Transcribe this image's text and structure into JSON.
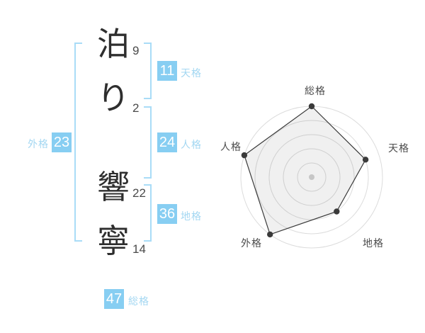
{
  "page": {
    "background": "#ffffff"
  },
  "name": {
    "characters": [
      {
        "char": "泊",
        "strokes": "9"
      },
      {
        "char": "り",
        "strokes": "2"
      },
      {
        "char": "響",
        "strokes": "22"
      },
      {
        "char": "寧",
        "strokes": "14"
      }
    ]
  },
  "scores": {
    "tenkaku": {
      "value": "11",
      "label": "天格"
    },
    "jinkaku": {
      "value": "24",
      "label": "人格"
    },
    "chikaku": {
      "value": "36",
      "label": "地格"
    },
    "gaikaku": {
      "value": "23",
      "label": "外格"
    },
    "soukaku": {
      "value": "47",
      "label": "総格"
    }
  },
  "colors": {
    "badge_blue": "#87cef2",
    "label_blue": "#a3d7f2",
    "bracket_blue": "#a9dcf7",
    "kanji_dark": "#2e2e2e",
    "stroke_gray": "#4a4a4a",
    "chart_grid": "#dcdcdc",
    "chart_line": "#3a3a3a"
  },
  "chart_data": {
    "type": "radar",
    "title": "",
    "categories": [
      "総格",
      "天格",
      "地格",
      "外格",
      "人格"
    ],
    "values": [
      5,
      4,
      3,
      5,
      5
    ],
    "score_labels": [
      "47",
      "11",
      "36",
      "23",
      "24"
    ],
    "max": 5,
    "rings": 5,
    "grid_shape": "circle",
    "start_angle_deg": -90,
    "direction": "clockwise",
    "legend": "none",
    "center_marker": true
  }
}
